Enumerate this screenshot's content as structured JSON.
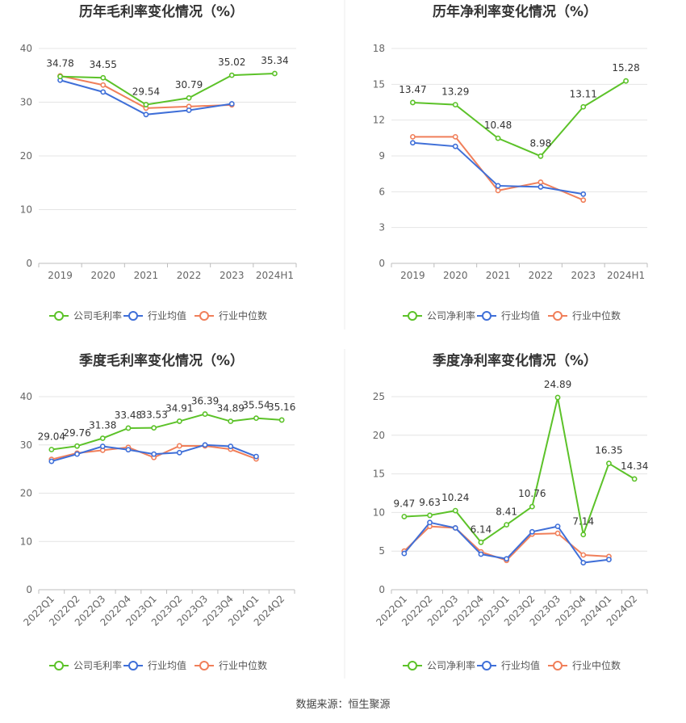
{
  "source_text": "数据来源：恒生聚源",
  "colors": {
    "company": "#5cc229",
    "industry_avg": "#3f6fd8",
    "industry_median": "#f07f5a",
    "grid": "#e4e4e4",
    "axis": "#bdbdbd",
    "tick_text": "#666666",
    "label_text": "#333333",
    "title_text": "#333333"
  },
  "chart_data": [
    {
      "id": "annual-gross",
      "type": "line",
      "title": "历年毛利率变化情况（%）",
      "categories": [
        "2019",
        "2020",
        "2021",
        "2022",
        "2023",
        "2024H1"
      ],
      "ylim": [
        0,
        40
      ],
      "yticks": [
        0,
        10,
        20,
        30,
        40
      ],
      "rotate_x_labels": false,
      "series": [
        {
          "name": "公司毛利率",
          "role": "company",
          "values": [
            34.78,
            34.55,
            29.54,
            30.79,
            35.02,
            35.34
          ],
          "labels": [
            "34.78",
            "34.55",
            "29.54",
            "30.79",
            "35.02",
            "35.34"
          ]
        },
        {
          "name": "行业均值",
          "role": "industry_avg",
          "values": [
            34.1,
            31.9,
            27.7,
            28.5,
            29.7,
            null
          ]
        },
        {
          "name": "行业中位数",
          "role": "industry_median",
          "values": [
            34.9,
            33.2,
            28.9,
            29.2,
            29.5,
            null
          ]
        }
      ],
      "legend": [
        "公司毛利率",
        "行业均值",
        "行业中位数"
      ]
    },
    {
      "id": "annual-net",
      "type": "line",
      "title": "历年净利率变化情况（%）",
      "categories": [
        "2019",
        "2020",
        "2021",
        "2022",
        "2023",
        "2024H1"
      ],
      "ylim": [
        0,
        18
      ],
      "yticks": [
        0,
        3,
        6,
        9,
        12,
        15,
        18
      ],
      "rotate_x_labels": false,
      "series": [
        {
          "name": "公司净利率",
          "role": "company",
          "values": [
            13.47,
            13.29,
            10.48,
            8.98,
            13.11,
            15.28
          ],
          "labels": [
            "13.47",
            "13.29",
            "10.48",
            "8.98",
            "13.11",
            "15.28"
          ]
        },
        {
          "name": "行业均值",
          "role": "industry_avg",
          "values": [
            10.1,
            9.8,
            6.5,
            6.4,
            5.8,
            null
          ]
        },
        {
          "name": "行业中位数",
          "role": "industry_median",
          "values": [
            10.6,
            10.6,
            6.1,
            6.8,
            5.3,
            null
          ]
        }
      ],
      "legend": [
        "公司净利率",
        "行业均值",
        "行业中位数"
      ]
    },
    {
      "id": "quarterly-gross",
      "type": "line",
      "title": "季度毛利率变化情况（%）",
      "categories": [
        "2022Q1",
        "2022Q2",
        "2022Q3",
        "2022Q4",
        "2023Q1",
        "2023Q2",
        "2023Q3",
        "2023Q4",
        "2024Q1",
        "2024Q2"
      ],
      "ylim": [
        0,
        40
      ],
      "yticks": [
        0,
        10,
        20,
        30,
        40
      ],
      "rotate_x_labels": true,
      "series": [
        {
          "name": "公司毛利率",
          "role": "company",
          "values": [
            29.04,
            29.76,
            31.38,
            33.48,
            33.53,
            34.91,
            36.39,
            34.89,
            35.54,
            35.16
          ],
          "labels": [
            "29.04",
            "29.76",
            "31.38",
            "33.48",
            "33.53",
            "34.91",
            "36.39",
            "34.89",
            "35.54",
            "35.16"
          ]
        },
        {
          "name": "行业均值",
          "role": "industry_avg",
          "values": [
            26.6,
            28.1,
            29.7,
            29.0,
            28.1,
            28.4,
            30.0,
            29.7,
            27.6,
            null
          ]
        },
        {
          "name": "行业中位数",
          "role": "industry_median",
          "values": [
            27.0,
            28.3,
            28.9,
            29.5,
            27.4,
            29.8,
            29.8,
            29.1,
            27.1,
            null
          ]
        }
      ],
      "legend": [
        "公司毛利率",
        "行业均值",
        "行业中位数"
      ]
    },
    {
      "id": "quarterly-net",
      "type": "line",
      "title": "季度净利率变化情况（%）",
      "categories": [
        "2022Q1",
        "2022Q2",
        "2022Q3",
        "2022Q4",
        "2023Q1",
        "2023Q2",
        "2023Q3",
        "2023Q4",
        "2024Q1",
        "2024Q2"
      ],
      "ylim": [
        0,
        25
      ],
      "yticks": [
        0,
        5,
        10,
        15,
        20,
        25
      ],
      "rotate_x_labels": true,
      "series": [
        {
          "name": "公司净利率",
          "role": "company",
          "values": [
            9.47,
            9.63,
            10.24,
            6.14,
            8.41,
            10.76,
            24.89,
            7.14,
            16.35,
            14.34
          ],
          "labels": [
            "9.47",
            "9.63",
            "10.24",
            "6.14",
            "8.41",
            "10.76",
            "24.89",
            "7.14",
            "16.35",
            "14.34"
          ]
        },
        {
          "name": "行业均值",
          "role": "industry_avg",
          "values": [
            4.7,
            8.7,
            8.0,
            4.6,
            4.0,
            7.5,
            8.2,
            3.5,
            3.9,
            null
          ]
        },
        {
          "name": "行业中位数",
          "role": "industry_median",
          "values": [
            5.0,
            8.2,
            8.0,
            4.9,
            3.8,
            7.2,
            7.3,
            4.5,
            4.3,
            null
          ]
        }
      ],
      "legend": [
        "公司净利率",
        "行业均值",
        "行业中位数"
      ]
    }
  ]
}
